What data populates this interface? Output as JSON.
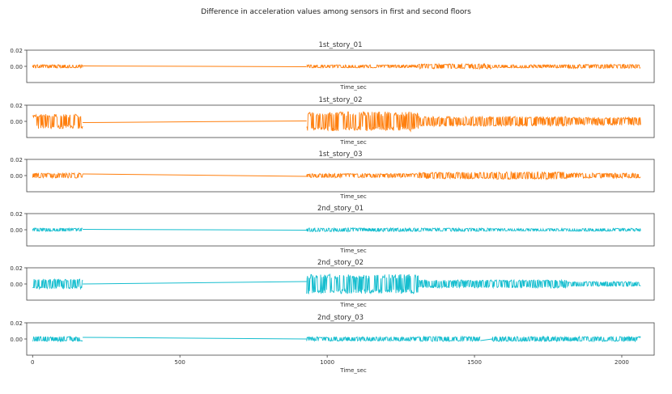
{
  "figure": {
    "title": "Difference in acceleration values among sensors in first and second floors"
  },
  "chart_data": [
    {
      "type": "line",
      "title": "1st_story_01",
      "xlabel": "Time_sec",
      "ylabel": "",
      "color": "#ff7f0e",
      "xlim": [
        -20,
        2110
      ],
      "ylim": [
        -0.02,
        0.02
      ],
      "yticks": [
        0.02,
        0.0
      ],
      "ytick_labels": [
        "0.02",
        "0.00"
      ],
      "xticks": [],
      "xtick_labels": [],
      "segments": [
        {
          "x_start": 0,
          "x_end": 170,
          "amplitude": 0.002
        },
        {
          "x_start": 930,
          "x_end": 1310,
          "amplitude": 0.0018
        },
        {
          "x_start": 1310,
          "x_end": 1560,
          "amplitude": 0.003
        },
        {
          "x_start": 1560,
          "x_end": 1815,
          "amplitude": 0.002
        },
        {
          "x_start": 1815,
          "x_end": 2065,
          "amplitude": 0.0025
        }
      ],
      "connectors": [
        {
          "x1": 170,
          "y1": 0.0005,
          "x2": 930,
          "y2": -0.0005
        }
      ]
    },
    {
      "type": "line",
      "title": "1st_story_02",
      "xlabel": "Time_sec",
      "ylabel": "",
      "color": "#ff7f0e",
      "xlim": [
        -20,
        2110
      ],
      "ylim": [
        -0.02,
        0.02
      ],
      "yticks": [
        0.02,
        0.0
      ],
      "ytick_labels": [
        "0.02",
        "0.00"
      ],
      "xticks": [],
      "xtick_labels": [],
      "segments": [
        {
          "x_start": 0,
          "x_end": 170,
          "amplitude": 0.009
        },
        {
          "x_start": 930,
          "x_end": 1310,
          "amplitude": 0.012
        },
        {
          "x_start": 1310,
          "x_end": 1560,
          "amplitude": 0.006
        },
        {
          "x_start": 1560,
          "x_end": 1815,
          "amplitude": 0.006
        },
        {
          "x_start": 1815,
          "x_end": 2065,
          "amplitude": 0.005
        }
      ],
      "connectors": [
        {
          "x1": 170,
          "y1": -0.0015,
          "x2": 930,
          "y2": 0.0005
        }
      ]
    },
    {
      "type": "line",
      "title": "1st_story_03",
      "xlabel": "Time_sec",
      "ylabel": "",
      "color": "#ff7f0e",
      "xlim": [
        -20,
        2110
      ],
      "ylim": [
        -0.02,
        0.02
      ],
      "yticks": [
        0.02,
        0.0
      ],
      "ytick_labels": [
        "0.02",
        "0.00"
      ],
      "xticks": [],
      "xtick_labels": [],
      "segments": [
        {
          "x_start": 0,
          "x_end": 170,
          "amplitude": 0.003
        },
        {
          "x_start": 930,
          "x_end": 1310,
          "amplitude": 0.0025
        },
        {
          "x_start": 1310,
          "x_end": 1560,
          "amplitude": 0.004
        },
        {
          "x_start": 1560,
          "x_end": 1815,
          "amplitude": 0.0045
        },
        {
          "x_start": 1815,
          "x_end": 2065,
          "amplitude": 0.003
        }
      ],
      "connectors": [
        {
          "x1": 170,
          "y1": 0.002,
          "x2": 930,
          "y2": -0.001
        }
      ]
    },
    {
      "type": "line",
      "title": "2nd_story_01",
      "xlabel": "Time_sec",
      "ylabel": "",
      "color": "#17becf",
      "xlim": [
        -20,
        2110
      ],
      "ylim": [
        -0.02,
        0.02
      ],
      "yticks": [
        0.02,
        0.0
      ],
      "ytick_labels": [
        "0.02",
        "0.00"
      ],
      "xticks": [],
      "xtick_labels": [],
      "segments": [
        {
          "x_start": 0,
          "x_end": 170,
          "amplitude": 0.002
        },
        {
          "x_start": 930,
          "x_end": 1310,
          "amplitude": 0.0022
        },
        {
          "x_start": 1310,
          "x_end": 1560,
          "amplitude": 0.002
        },
        {
          "x_start": 1560,
          "x_end": 1815,
          "amplitude": 0.0015
        },
        {
          "x_start": 1815,
          "x_end": 2065,
          "amplitude": 0.0018
        }
      ],
      "connectors": [
        {
          "x1": 170,
          "y1": 0.0005,
          "x2": 930,
          "y2": -0.0005
        }
      ]
    },
    {
      "type": "line",
      "title": "2nd_story_02",
      "xlabel": "Time_sec",
      "ylabel": "",
      "color": "#17becf",
      "xlim": [
        -20,
        2110
      ],
      "ylim": [
        -0.02,
        0.02
      ],
      "yticks": [
        0.02,
        0.0
      ],
      "ytick_labels": [
        "0.02",
        "0.00"
      ],
      "xticks": [],
      "xtick_labels": [],
      "segments": [
        {
          "x_start": 0,
          "x_end": 170,
          "amplitude": 0.006
        },
        {
          "x_start": 930,
          "x_end": 1310,
          "amplitude": 0.012
        },
        {
          "x_start": 1310,
          "x_end": 1560,
          "amplitude": 0.005
        },
        {
          "x_start": 1560,
          "x_end": 1815,
          "amplitude": 0.005
        },
        {
          "x_start": 1815,
          "x_end": 2065,
          "amplitude": 0.003
        }
      ],
      "connectors": [
        {
          "x1": 170,
          "y1": 0.0,
          "x2": 930,
          "y2": 0.003
        }
      ]
    },
    {
      "type": "line",
      "title": "2nd_story_03",
      "xlabel": "Time_sec",
      "ylabel": "",
      "color": "#17becf",
      "xlim": [
        -20,
        2110
      ],
      "ylim": [
        -0.02,
        0.02
      ],
      "yticks": [
        0.02,
        0.0
      ],
      "ytick_labels": [
        "0.02",
        "0.00"
      ],
      "xticks": [
        0,
        500,
        1000,
        1500,
        2000
      ],
      "xtick_labels": [
        "0",
        "500",
        "1000",
        "1500",
        "2000"
      ],
      "segments": [
        {
          "x_start": 0,
          "x_end": 170,
          "amplitude": 0.003
        },
        {
          "x_start": 930,
          "x_end": 1310,
          "amplitude": 0.0025
        },
        {
          "x_start": 1310,
          "x_end": 1520,
          "amplitude": 0.003
        },
        {
          "x_start": 1560,
          "x_end": 1815,
          "amplitude": 0.003
        },
        {
          "x_start": 1815,
          "x_end": 2065,
          "amplitude": 0.003
        }
      ],
      "connectors": [
        {
          "x1": 170,
          "y1": 0.002,
          "x2": 930,
          "y2": 0.0
        },
        {
          "x1": 1520,
          "y1": -0.002,
          "x2": 1560,
          "y2": 0.0
        }
      ]
    }
  ]
}
